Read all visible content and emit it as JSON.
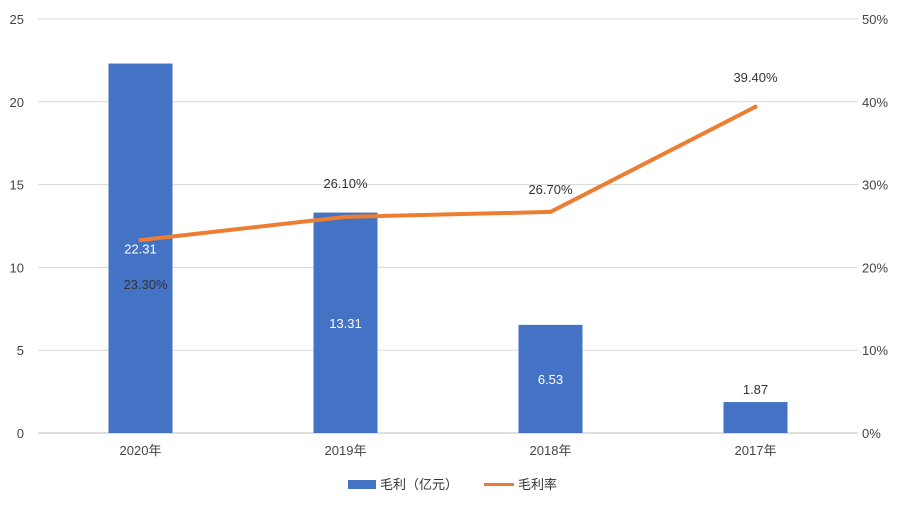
{
  "chart_data": {
    "type": "bar",
    "categories": [
      "2020年",
      "2019年",
      "2018年",
      "2017年"
    ],
    "title": "",
    "xlabel": "",
    "ylabel": "",
    "ylim": [
      0,
      25
    ],
    "y2lim": [
      0,
      50
    ],
    "y_ticks": [
      "0",
      "5",
      "10",
      "15",
      "20",
      "25"
    ],
    "y2_ticks": [
      "0%",
      "10%",
      "20%",
      "30%",
      "40%",
      "50%"
    ],
    "grid": true,
    "legend_position": "bottom",
    "series": [
      {
        "name": "毛利（亿元）",
        "type": "bar",
        "axis": "left",
        "color": "#4472c4",
        "values": [
          22.31,
          13.31,
          6.53,
          1.87
        ],
        "labels": [
          "22.31",
          "13.31",
          "6.53",
          "1.87"
        ]
      },
      {
        "name": "毛利率",
        "type": "line",
        "axis": "right",
        "color": "#ed7d31",
        "values": [
          23.3,
          26.1,
          26.7,
          39.4
        ],
        "labels": [
          "23.30%",
          "26.10%",
          "26.70%",
          "39.40%"
        ]
      }
    ]
  }
}
